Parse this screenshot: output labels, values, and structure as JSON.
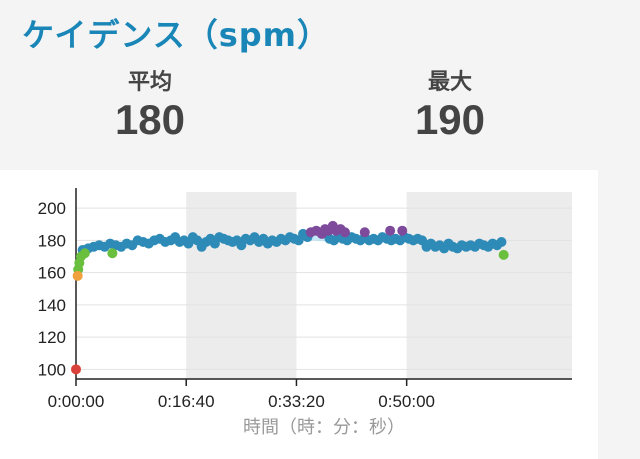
{
  "title": "ケイデンス（spm）",
  "stats": {
    "avg": {
      "label": "平均",
      "value": "180"
    },
    "max": {
      "label": "最大",
      "value": "190"
    }
  },
  "chart_data": {
    "type": "scatter",
    "xlabel": "時間（時：分：秒）",
    "ylabel": "",
    "xlim": [
      0,
      4500
    ],
    "ylim": [
      94,
      210
    ],
    "y_ticks": [
      100,
      120,
      140,
      160,
      180,
      200
    ],
    "x_ticks": [
      {
        "value": 0,
        "label": "0:00:00"
      },
      {
        "value": 1000,
        "label": "0:16:40"
      },
      {
        "value": 2000,
        "label": "0:33:20"
      },
      {
        "value": 3000,
        "label": "0:50:00"
      }
    ],
    "shaded_bands": [
      [
        1000,
        2000
      ],
      [
        3000,
        4500
      ]
    ],
    "colors": {
      "blue": "#2e8bb8",
      "green": "#6abf3f",
      "orange": "#f0a03c",
      "red": "#d9423a",
      "purple": "#7d4a9c",
      "band": "#ececec",
      "line": "#aee0f3"
    },
    "series": [
      {
        "color": "blue",
        "points": [
          [
            60,
            174
          ],
          [
            110,
            175
          ],
          [
            160,
            176
          ],
          [
            210,
            177
          ],
          [
            260,
            176
          ],
          [
            310,
            178
          ],
          [
            360,
            177
          ],
          [
            410,
            176
          ],
          [
            460,
            178
          ],
          [
            510,
            177
          ],
          [
            560,
            180
          ],
          [
            610,
            179
          ],
          [
            660,
            178
          ],
          [
            710,
            180
          ],
          [
            760,
            181
          ],
          [
            810,
            179
          ],
          [
            860,
            180
          ],
          [
            900,
            182
          ],
          [
            940,
            179
          ],
          [
            980,
            180
          ],
          [
            1020,
            178
          ],
          [
            1060,
            182
          ],
          [
            1100,
            180
          ],
          [
            1140,
            176
          ],
          [
            1180,
            179
          ],
          [
            1220,
            181
          ],
          [
            1260,
            178
          ],
          [
            1300,
            182
          ],
          [
            1340,
            181
          ],
          [
            1380,
            180
          ],
          [
            1420,
            179
          ],
          [
            1460,
            180
          ],
          [
            1500,
            177
          ],
          [
            1540,
            181
          ],
          [
            1580,
            180
          ],
          [
            1620,
            182
          ],
          [
            1660,
            179
          ],
          [
            1700,
            181
          ],
          [
            1740,
            178
          ],
          [
            1780,
            180
          ],
          [
            1820,
            179
          ],
          [
            1860,
            181
          ],
          [
            1900,
            180
          ],
          [
            1940,
            182
          ],
          [
            1980,
            181
          ],
          [
            2020,
            180
          ],
          [
            2060,
            184
          ],
          [
            2100,
            182
          ],
          [
            2300,
            181
          ],
          [
            2340,
            180
          ],
          [
            2380,
            182
          ],
          [
            2420,
            181
          ],
          [
            2460,
            180
          ],
          [
            2500,
            182
          ],
          [
            2540,
            181
          ],
          [
            2580,
            180
          ],
          [
            2620,
            182
          ],
          [
            2660,
            180
          ],
          [
            2700,
            181
          ],
          [
            2740,
            180
          ],
          [
            2780,
            182
          ],
          [
            2820,
            181
          ],
          [
            2860,
            180
          ],
          [
            2900,
            181
          ],
          [
            2940,
            180
          ],
          [
            2980,
            182
          ],
          [
            3020,
            181
          ],
          [
            3060,
            180
          ],
          [
            3100,
            181
          ],
          [
            3140,
            180
          ],
          [
            3180,
            176
          ],
          [
            3220,
            178
          ],
          [
            3260,
            176
          ],
          [
            3300,
            177
          ],
          [
            3340,
            175
          ],
          [
            3380,
            178
          ],
          [
            3420,
            176
          ],
          [
            3460,
            175
          ],
          [
            3500,
            177
          ],
          [
            3540,
            176
          ],
          [
            3580,
            177
          ],
          [
            3620,
            176
          ],
          [
            3660,
            178
          ],
          [
            3700,
            177
          ],
          [
            3740,
            176
          ],
          [
            3780,
            178
          ],
          [
            3820,
            177
          ],
          [
            3860,
            179
          ]
        ]
      },
      {
        "color": "purple",
        "points": [
          [
            2130,
            185
          ],
          [
            2180,
            186
          ],
          [
            2230,
            184
          ],
          [
            2260,
            187
          ],
          [
            2290,
            186
          ],
          [
            2330,
            189
          ],
          [
            2360,
            186
          ],
          [
            2400,
            187
          ],
          [
            2440,
            185
          ],
          [
            2620,
            185
          ],
          [
            2850,
            186
          ],
          [
            2960,
            186
          ]
        ]
      },
      {
        "color": "green",
        "points": [
          [
            20,
            162
          ],
          [
            30,
            166
          ],
          [
            45,
            170
          ],
          [
            80,
            172
          ],
          [
            330,
            172
          ],
          [
            3880,
            171
          ]
        ]
      },
      {
        "color": "orange",
        "points": [
          [
            15,
            158
          ]
        ]
      },
      {
        "color": "red",
        "points": [
          [
            0,
            100
          ]
        ]
      }
    ]
  }
}
